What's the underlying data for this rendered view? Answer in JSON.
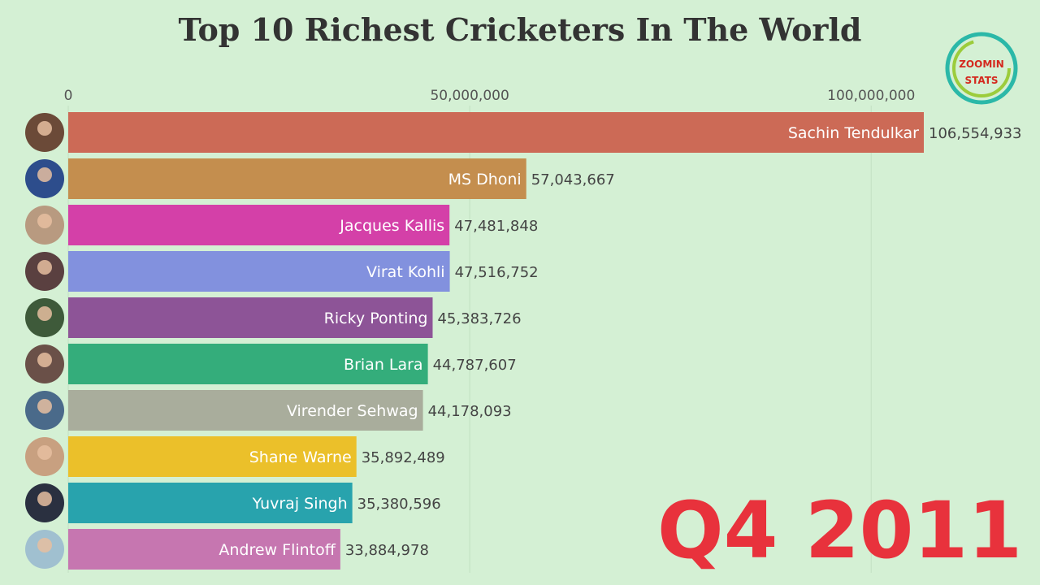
{
  "chart_data": {
    "type": "bar",
    "orientation": "horizontal",
    "title": "Top 10 Richest Cricketers In The World",
    "period": "Q4 2011",
    "xlim": [
      0,
      106554933
    ],
    "x_ticks": [
      0,
      50000000,
      100000000
    ],
    "x_tick_labels": [
      "0",
      "50,000,000",
      "100,000,000"
    ],
    "grid": true,
    "categories": [
      "Sachin Tendulkar",
      "MS Dhoni",
      "Jacques Kallis",
      "Virat Kohli",
      "Ricky Ponting",
      "Brian Lara",
      "Virender Sehwag",
      "Shane Warne",
      "Yuvraj Singh",
      "Andrew Flintoff"
    ],
    "values": [
      106554933,
      57043667,
      47481848,
      47516752,
      45383726,
      44787607,
      44178093,
      35892489,
      35380596,
      33884978
    ],
    "value_labels": [
      "106,554,933",
      "57,043,667",
      "47,481,848",
      "47,516,752",
      "45,383,726",
      "44,787,607",
      "44,178,093",
      "35,892,489",
      "35,380,596",
      "33,884,978"
    ],
    "colors": [
      "#cc6a56",
      "#c48e4e",
      "#d440a8",
      "#8291de",
      "#8d5497",
      "#34ad7b",
      "#a9ad9c",
      "#ebc02a",
      "#28a3ad",
      "#c676b0"
    ],
    "avatar_colors": [
      "#6b4a38",
      "#2d4d8c",
      "#b89a80",
      "#5a4040",
      "#3e5a3a",
      "#6a5048",
      "#4a6a8a",
      "#c8a080",
      "#2a3040",
      "#a0c0d0"
    ]
  },
  "logo": {
    "line1": "ZOOMIN",
    "line2": "STATS"
  }
}
